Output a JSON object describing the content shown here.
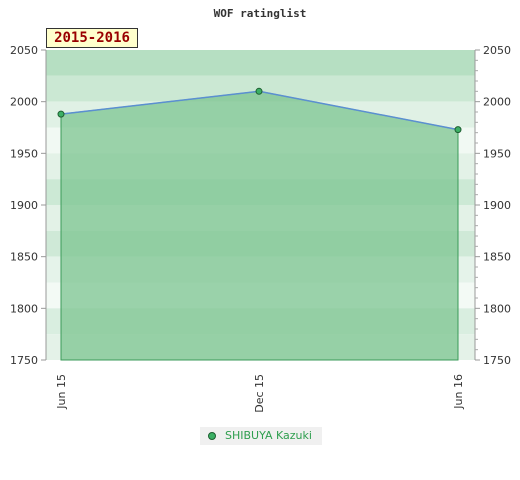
{
  "chart_data": {
    "type": "line",
    "title": "WOF ratinglist",
    "season": "2015-2016",
    "categories": [
      "Jun 15",
      "Dec 15",
      "Jun 16"
    ],
    "series": [
      {
        "name": "SHIBUYA Kazuki",
        "values": [
          1988,
          2010,
          1973
        ]
      }
    ],
    "ylim": [
      1750,
      2050
    ],
    "yticks": [
      1750,
      1800,
      1850,
      1900,
      1950,
      2000,
      2050
    ],
    "colors": {
      "line": "#5b8fd1",
      "fill": "#7cc490",
      "marker": "#3cb065",
      "legend_text": "#2e9e4e"
    },
    "grid": true,
    "legend_position": "bottom-center"
  }
}
